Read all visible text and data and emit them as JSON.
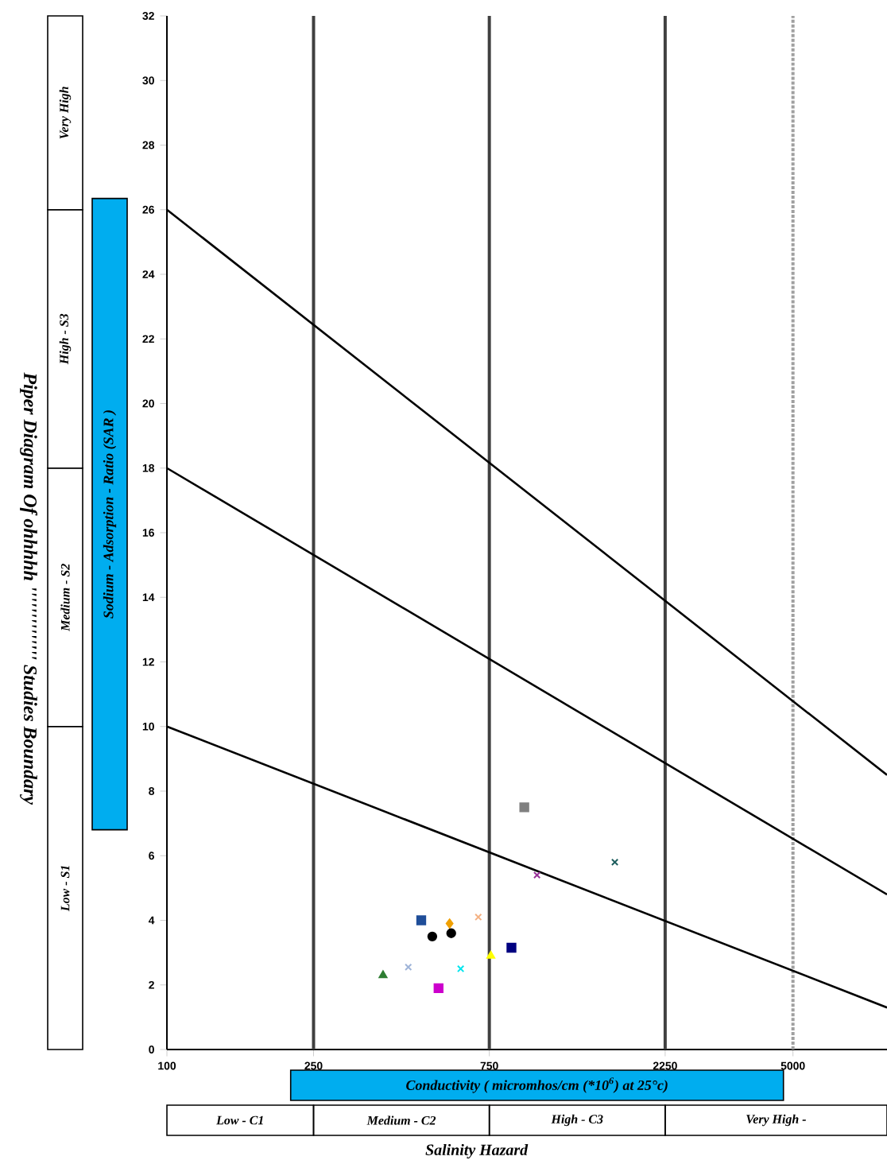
{
  "chart_data": {
    "type": "scatter",
    "title": "Piper Diagram Of ohhhhh '''''''''''''' Studies Boundary",
    "xlabel": "Conductivity ( micromhos/cm (*10$^{6}$) at 25°c)",
    "ylabel": "Sodium - Adsorption - Ratio (SAR )",
    "annotations": [
      "Low - S1",
      "Medium - S2",
      "High - S3",
      "Very High",
      "Low - C1",
      "Medium - C2",
      "High - C3",
      "Very High -",
      "Salinity  Hazard"
    ],
    "log": "x",
    "xlim": [
      100,
      9000
    ],
    "xticks": [
      100,
      250,
      750,
      2250,
      5000
    ],
    "ylim": [
      0,
      32
    ],
    "yticks": [
      0,
      2,
      4,
      6,
      8,
      10,
      12,
      14,
      16,
      18,
      20,
      22,
      24,
      26,
      28,
      30,
      32
    ],
    "ref_lines": [
      {
        "axis": "x",
        "value": 250,
        "color": "#404040",
        "line_style": "solid"
      },
      {
        "axis": "x",
        "value": 750,
        "color": "#404040",
        "line_style": "solid"
      },
      {
        "axis": "x",
        "value": 2250,
        "color": "#404040",
        "line_style": "solid"
      },
      {
        "axis": "x",
        "value": 5000,
        "color": "#a0a0a0",
        "line_style": "dotted"
      }
    ],
    "series": [
      {
        "type": "line",
        "color": "#000000",
        "x": [
          100,
          9000
        ],
        "values": [
          26,
          8.5
        ]
      },
      {
        "type": "line",
        "color": "#000000",
        "x": [
          100,
          9000
        ],
        "values": [
          18,
          4.8
        ]
      },
      {
        "type": "line",
        "color": "#000000",
        "x": [
          100,
          9000
        ],
        "values": [
          10,
          1.3
        ]
      },
      {
        "marker": "square",
        "color": "#808080",
        "x": [
          933
        ],
        "values": [
          7.5
        ]
      },
      {
        "marker": "cross",
        "color": "#1f5f5f",
        "x": [
          1643
        ],
        "values": [
          5.8
        ]
      },
      {
        "marker": "cross",
        "color": "#993399",
        "x": [
          1010
        ],
        "values": [
          5.4
        ]
      },
      {
        "marker": "square",
        "color": "#1f4e99",
        "x": [
          490
        ],
        "values": [
          4.0
        ]
      },
      {
        "marker": "diamond",
        "color": "#f0a000",
        "x": [
          585
        ],
        "values": [
          3.9
        ]
      },
      {
        "marker": "cross",
        "color": "#f4b183",
        "x": [
          700
        ],
        "values": [
          4.1
        ]
      },
      {
        "marker": "circle",
        "color": "#000000",
        "x": [
          525
        ],
        "values": [
          3.5
        ]
      },
      {
        "marker": "circle",
        "color": "#000000",
        "x": [
          591
        ],
        "values": [
          3.6
        ]
      },
      {
        "marker": "triangle",
        "color": "#ffff00",
        "x": [
          757
        ],
        "values": [
          2.9
        ]
      },
      {
        "marker": "square",
        "color": "#000080",
        "x": [
          861
        ],
        "values": [
          3.15
        ]
      },
      {
        "marker": "triangle",
        "color": "#2e7d32",
        "x": [
          386
        ],
        "values": [
          2.3
        ]
      },
      {
        "marker": "cross",
        "color": "#9fb4d8",
        "x": [
          452
        ],
        "values": [
          2.55
        ]
      },
      {
        "marker": "cross",
        "color": "#00e5ee",
        "x": [
          627
        ],
        "values": [
          2.5
        ]
      },
      {
        "marker": "square",
        "color": "#cc00cc",
        "x": [
          546
        ],
        "values": [
          1.9
        ]
      }
    ]
  }
}
